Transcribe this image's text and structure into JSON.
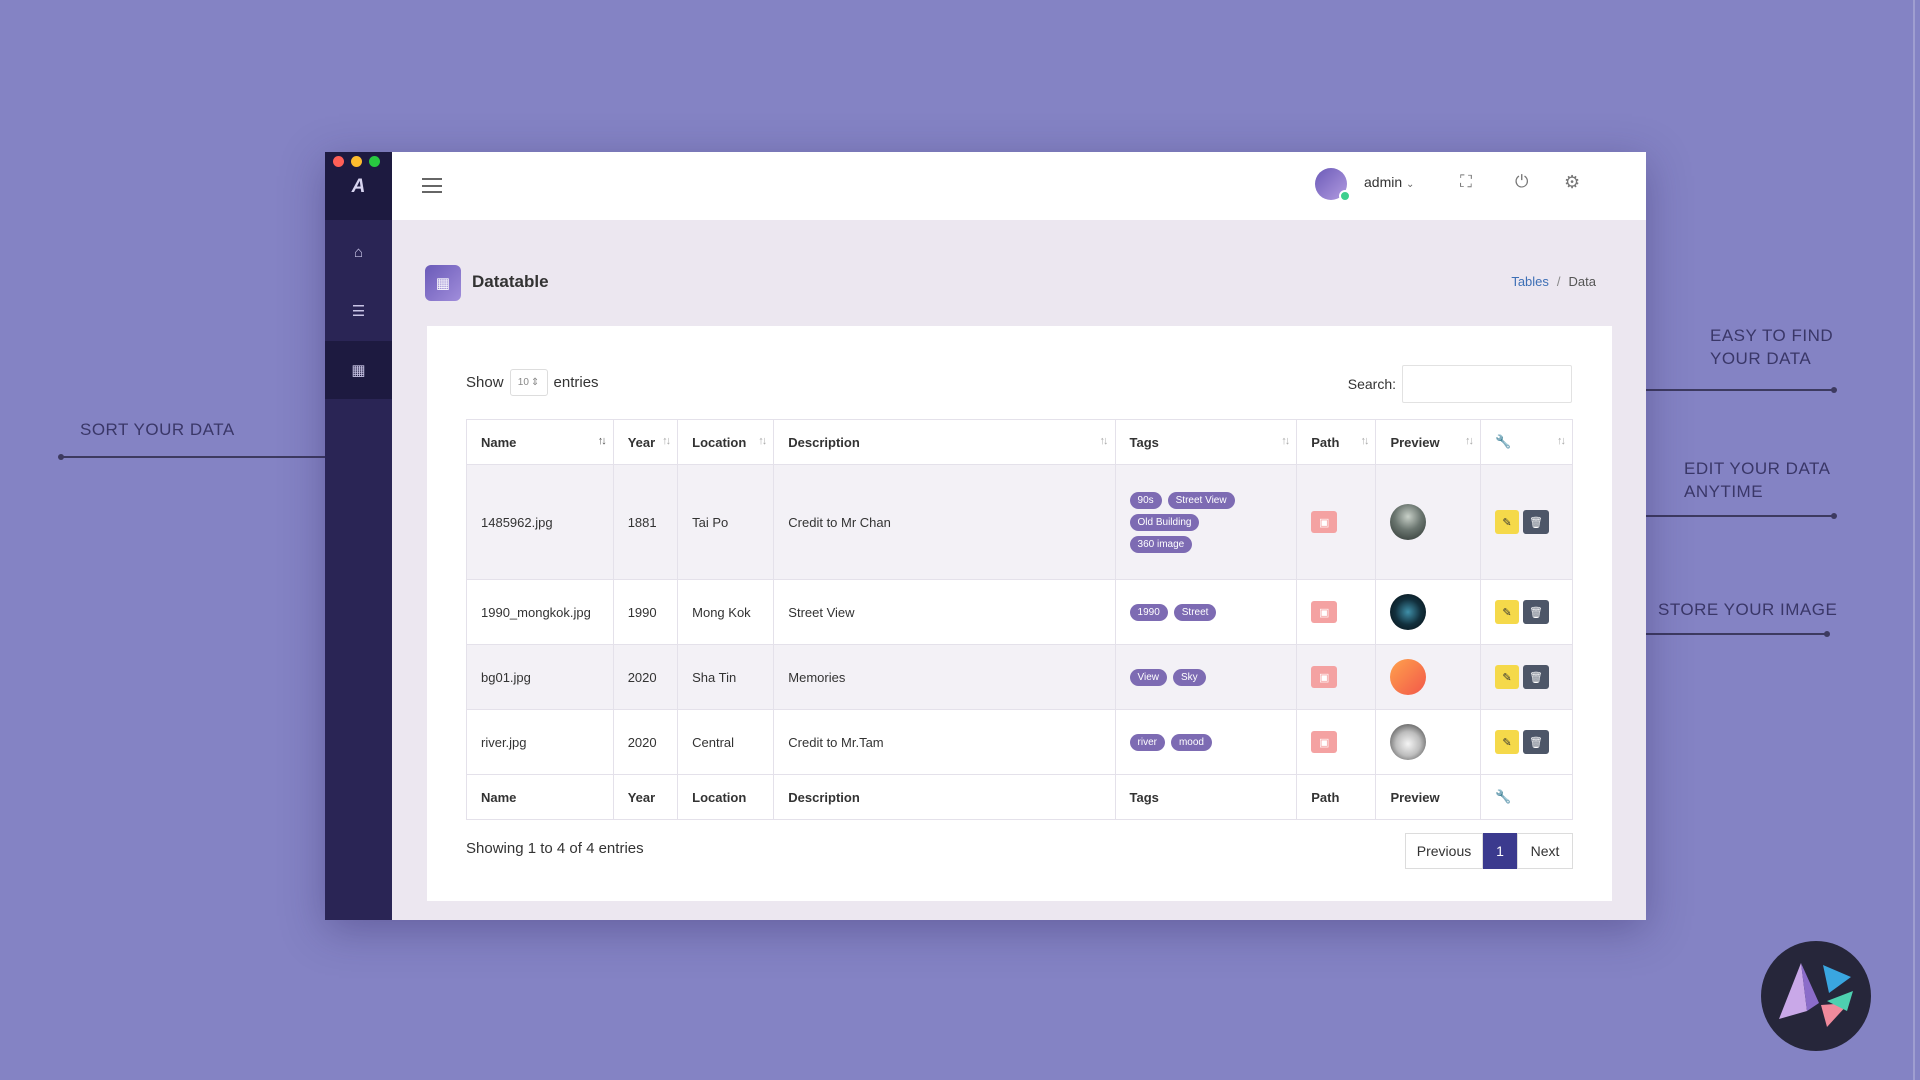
{
  "window": {
    "logo": "A"
  },
  "header": {
    "user": "admin"
  },
  "page": {
    "title": "Datatable"
  },
  "breadcrumb": {
    "parent": "Tables",
    "separator": "/",
    "current": "Data"
  },
  "table_controls": {
    "show_label": "Show",
    "length_value": "10",
    "entries_label": "entries",
    "search_label": "Search:",
    "search_value": ""
  },
  "columns": [
    "Name",
    "Year",
    "Location",
    "Description",
    "Tags",
    "Path",
    "Preview"
  ],
  "rows": [
    {
      "name": "1485962.jpg",
      "year": "1881",
      "location": "Tai Po",
      "description": "Credit to Mr Chan",
      "tags": [
        "90s",
        "Street View",
        "Old Building",
        "360 image"
      ]
    },
    {
      "name": "1990_mongkok.jpg",
      "year": "1990",
      "location": "Mong Kok",
      "description": "Street View",
      "tags": [
        "1990",
        "Street"
      ]
    },
    {
      "name": "bg01.jpg",
      "year": "2020",
      "location": "Sha Tin",
      "description": "Memories",
      "tags": [
        "View",
        "Sky"
      ]
    },
    {
      "name": "river.jpg",
      "year": "2020",
      "location": "Central",
      "description": "Credit to Mr.Tam",
      "tags": [
        "river",
        "mood"
      ]
    }
  ],
  "footer": {
    "info": "Showing 1 to 4 of 4 entries",
    "previous": "Previous",
    "page": "1",
    "next": "Next"
  },
  "annotations": {
    "sort": "SORT YOUR DATA",
    "find_1": "EASY TO FIND",
    "find_2": "YOUR DATA",
    "edit_1": "EDIT YOUR DATA",
    "edit_2": "ANYTIME",
    "store": "STORE YOUR IMAGE"
  },
  "colors": {
    "background": "#8483c4",
    "sidebar": "#2a2555",
    "tag": "#7d6bb3",
    "accent": "#3b3a8e"
  }
}
